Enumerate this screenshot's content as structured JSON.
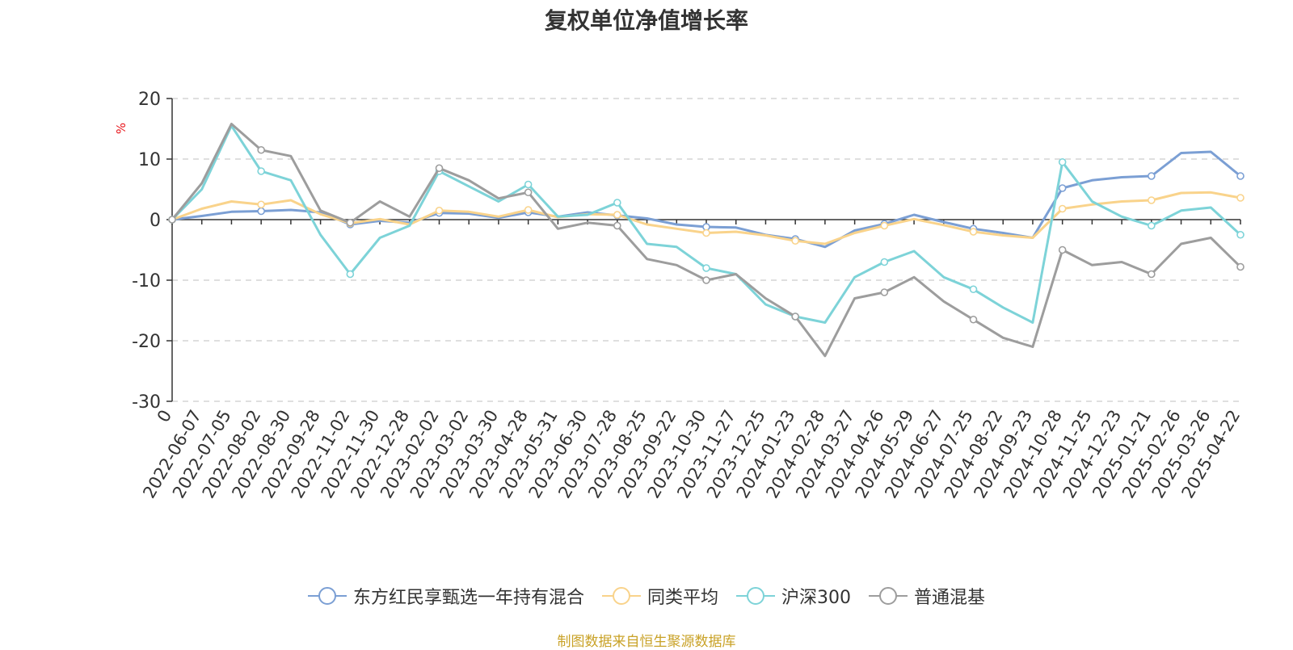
{
  "chart_data": {
    "type": "line",
    "title": "复权单位净值增长率",
    "ylabel": "%",
    "ylim": [
      -30,
      20
    ],
    "yticks": [
      "20",
      "10",
      "0",
      "-10",
      "-20",
      "-30"
    ],
    "grid": true,
    "legend_position": "bottom",
    "categories": [
      "0",
      "2022-06-07",
      "2022-07-05",
      "2022-08-02",
      "2022-08-30",
      "2022-09-28",
      "2022-11-02",
      "2022-11-30",
      "2022-12-28",
      "2023-02-02",
      "2023-03-02",
      "2023-03-30",
      "2023-04-28",
      "2023-05-31",
      "2023-06-30",
      "2023-07-28",
      "2023-08-25",
      "2023-09-22",
      "2023-10-30",
      "2023-11-27",
      "2023-12-25",
      "2024-01-23",
      "2024-02-28",
      "2024-03-27",
      "2024-04-26",
      "2024-05-29",
      "2024-06-27",
      "2024-07-25",
      "2024-08-22",
      "2024-09-23",
      "2024-10-28",
      "2024-11-25",
      "2024-12-23",
      "2025-01-21",
      "2025-02-26",
      "2025-03-26",
      "2025-04-22"
    ],
    "series": [
      {
        "name": "东方红民享甄选一年持有混合",
        "color": "#7b9fd4",
        "values": [
          0,
          0.6,
          1.3,
          1.4,
          1.6,
          1.2,
          -0.8,
          -0.2,
          -0.5,
          1.1,
          1.0,
          0.3,
          1.2,
          0.5,
          1.2,
          0.7,
          0.2,
          -0.8,
          -1.2,
          -1.3,
          -2.5,
          -3.2,
          -4.5,
          -1.8,
          -0.7,
          0.8,
          -0.4,
          -1.5,
          -2.2,
          -3.0,
          5.2,
          6.5,
          7.0,
          7.2,
          11.0,
          11.2,
          7.2
        ]
      },
      {
        "name": "同类平均",
        "color": "#f9d38b",
        "values": [
          0,
          1.8,
          3.0,
          2.5,
          3.2,
          0.9,
          -0.6,
          0.1,
          -0.8,
          1.5,
          1.3,
          0.5,
          1.6,
          0.4,
          0.9,
          0.8,
          -0.8,
          -1.5,
          -2.2,
          -2.0,
          -2.6,
          -3.5,
          -4.0,
          -2.2,
          -1.0,
          0.1,
          -0.9,
          -2.0,
          -2.6,
          -3.0,
          1.8,
          2.5,
          3.0,
          3.2,
          4.4,
          4.5,
          3.6
        ]
      },
      {
        "name": "沪深300",
        "color": "#7dd3d8",
        "values": [
          0,
          5.0,
          15.5,
          8.0,
          6.5,
          -2.5,
          -9.0,
          -3.0,
          -1.0,
          8.0,
          5.5,
          3.0,
          5.8,
          0.5,
          0.8,
          2.8,
          -4.0,
          -4.5,
          -8.0,
          -9.0,
          -14.0,
          -16.0,
          -17.0,
          -9.5,
          -7.0,
          -5.2,
          -9.5,
          -11.5,
          -14.5,
          -17.0,
          9.5,
          3.0,
          0.5,
          -1.0,
          1.5,
          2.0,
          -2.5
        ]
      },
      {
        "name": "普通混基",
        "color": "#9d9d9d",
        "values": [
          0,
          6.0,
          15.8,
          11.5,
          10.5,
          1.5,
          -0.5,
          3.0,
          0.5,
          8.5,
          6.5,
          3.5,
          4.5,
          -1.5,
          -0.5,
          -1.0,
          -6.5,
          -7.5,
          -10.0,
          -9.0,
          -13.0,
          -16.0,
          -22.5,
          -13.0,
          -12.0,
          -9.5,
          -13.5,
          -16.5,
          -19.5,
          -21.0,
          -5.0,
          -7.5,
          -7.0,
          -9.0,
          -4.0,
          -3.0,
          -7.8
        ]
      }
    ]
  },
  "source_note": "制图数据来自恒生聚源数据库"
}
